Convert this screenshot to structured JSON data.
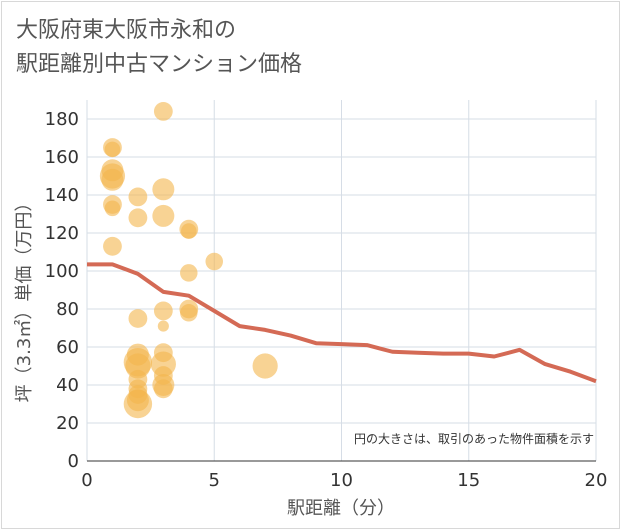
{
  "title_lines": [
    "大阪府東大阪市永和の",
    "駅距離別中古マンション価格"
  ],
  "chart_data": {
    "type": "scatter",
    "title": "大阪府東大阪市永和の駅距離別中古マンション価格",
    "xlabel": "駅距離（分）",
    "ylabel": "坪（3.3㎡）単価（万円）",
    "xlim": [
      0,
      20
    ],
    "ylim": [
      0,
      190
    ],
    "xticks": [
      0,
      5,
      10,
      15,
      20
    ],
    "yticks": [
      0,
      20,
      40,
      60,
      80,
      100,
      120,
      140,
      160,
      180
    ],
    "grid": true,
    "annotation": "円の大きさは、取引のあった物件面積を示す",
    "colors": {
      "bubble": "#f3b54c",
      "line": "#d46a55",
      "grid": "#d6dde6"
    },
    "scatter": [
      {
        "x": 1,
        "y": 165,
        "size": 2
      },
      {
        "x": 1,
        "y": 164,
        "size": 1.5
      },
      {
        "x": 1,
        "y": 153,
        "size": 2.5
      },
      {
        "x": 1,
        "y": 150,
        "size": 3
      },
      {
        "x": 1,
        "y": 148,
        "size": 2.5
      },
      {
        "x": 1,
        "y": 135,
        "size": 2
      },
      {
        "x": 1,
        "y": 133,
        "size": 1.5
      },
      {
        "x": 1,
        "y": 113,
        "size": 2
      },
      {
        "x": 2,
        "y": 139,
        "size": 2
      },
      {
        "x": 2,
        "y": 128,
        "size": 2
      },
      {
        "x": 2,
        "y": 75,
        "size": 2
      },
      {
        "x": 2,
        "y": 56,
        "size": 2.5
      },
      {
        "x": 2,
        "y": 52,
        "size": 3.5
      },
      {
        "x": 2,
        "y": 50,
        "size": 3
      },
      {
        "x": 2,
        "y": 43,
        "size": 2
      },
      {
        "x": 2,
        "y": 38,
        "size": 2
      },
      {
        "x": 2,
        "y": 32,
        "size": 2.5
      },
      {
        "x": 2,
        "y": 30,
        "size": 3.5
      },
      {
        "x": 2,
        "y": 35,
        "size": 2
      },
      {
        "x": 3,
        "y": 184,
        "size": 2
      },
      {
        "x": 3,
        "y": 143,
        "size": 2.5
      },
      {
        "x": 3,
        "y": 129,
        "size": 2.5
      },
      {
        "x": 3,
        "y": 79,
        "size": 2
      },
      {
        "x": 3,
        "y": 71,
        "size": 0.8
      },
      {
        "x": 3,
        "y": 57,
        "size": 2
      },
      {
        "x": 3,
        "y": 51,
        "size": 3
      },
      {
        "x": 3,
        "y": 45,
        "size": 2
      },
      {
        "x": 3,
        "y": 40,
        "size": 2.5
      },
      {
        "x": 3,
        "y": 38,
        "size": 2
      },
      {
        "x": 4,
        "y": 122,
        "size": 2
      },
      {
        "x": 4,
        "y": 121,
        "size": 1.5
      },
      {
        "x": 4,
        "y": 99,
        "size": 1.8
      },
      {
        "x": 4,
        "y": 80,
        "size": 2
      },
      {
        "x": 4,
        "y": 78,
        "size": 1.8
      },
      {
        "x": 5,
        "y": 105,
        "size": 1.8
      },
      {
        "x": 7,
        "y": 50,
        "size": 3
      }
    ],
    "line": {
      "x": [
        0,
        1,
        2,
        3,
        4,
        5,
        6,
        7,
        8,
        9,
        10,
        11,
        12,
        13,
        14,
        15,
        16,
        17,
        18,
        19,
        20
      ],
      "y": [
        103.5,
        103.5,
        98.5,
        89,
        87,
        79,
        71,
        69,
        66,
        62,
        61.5,
        61,
        57.5,
        57,
        56.5,
        56.5,
        55,
        58.5,
        51,
        47,
        42
      ]
    }
  }
}
